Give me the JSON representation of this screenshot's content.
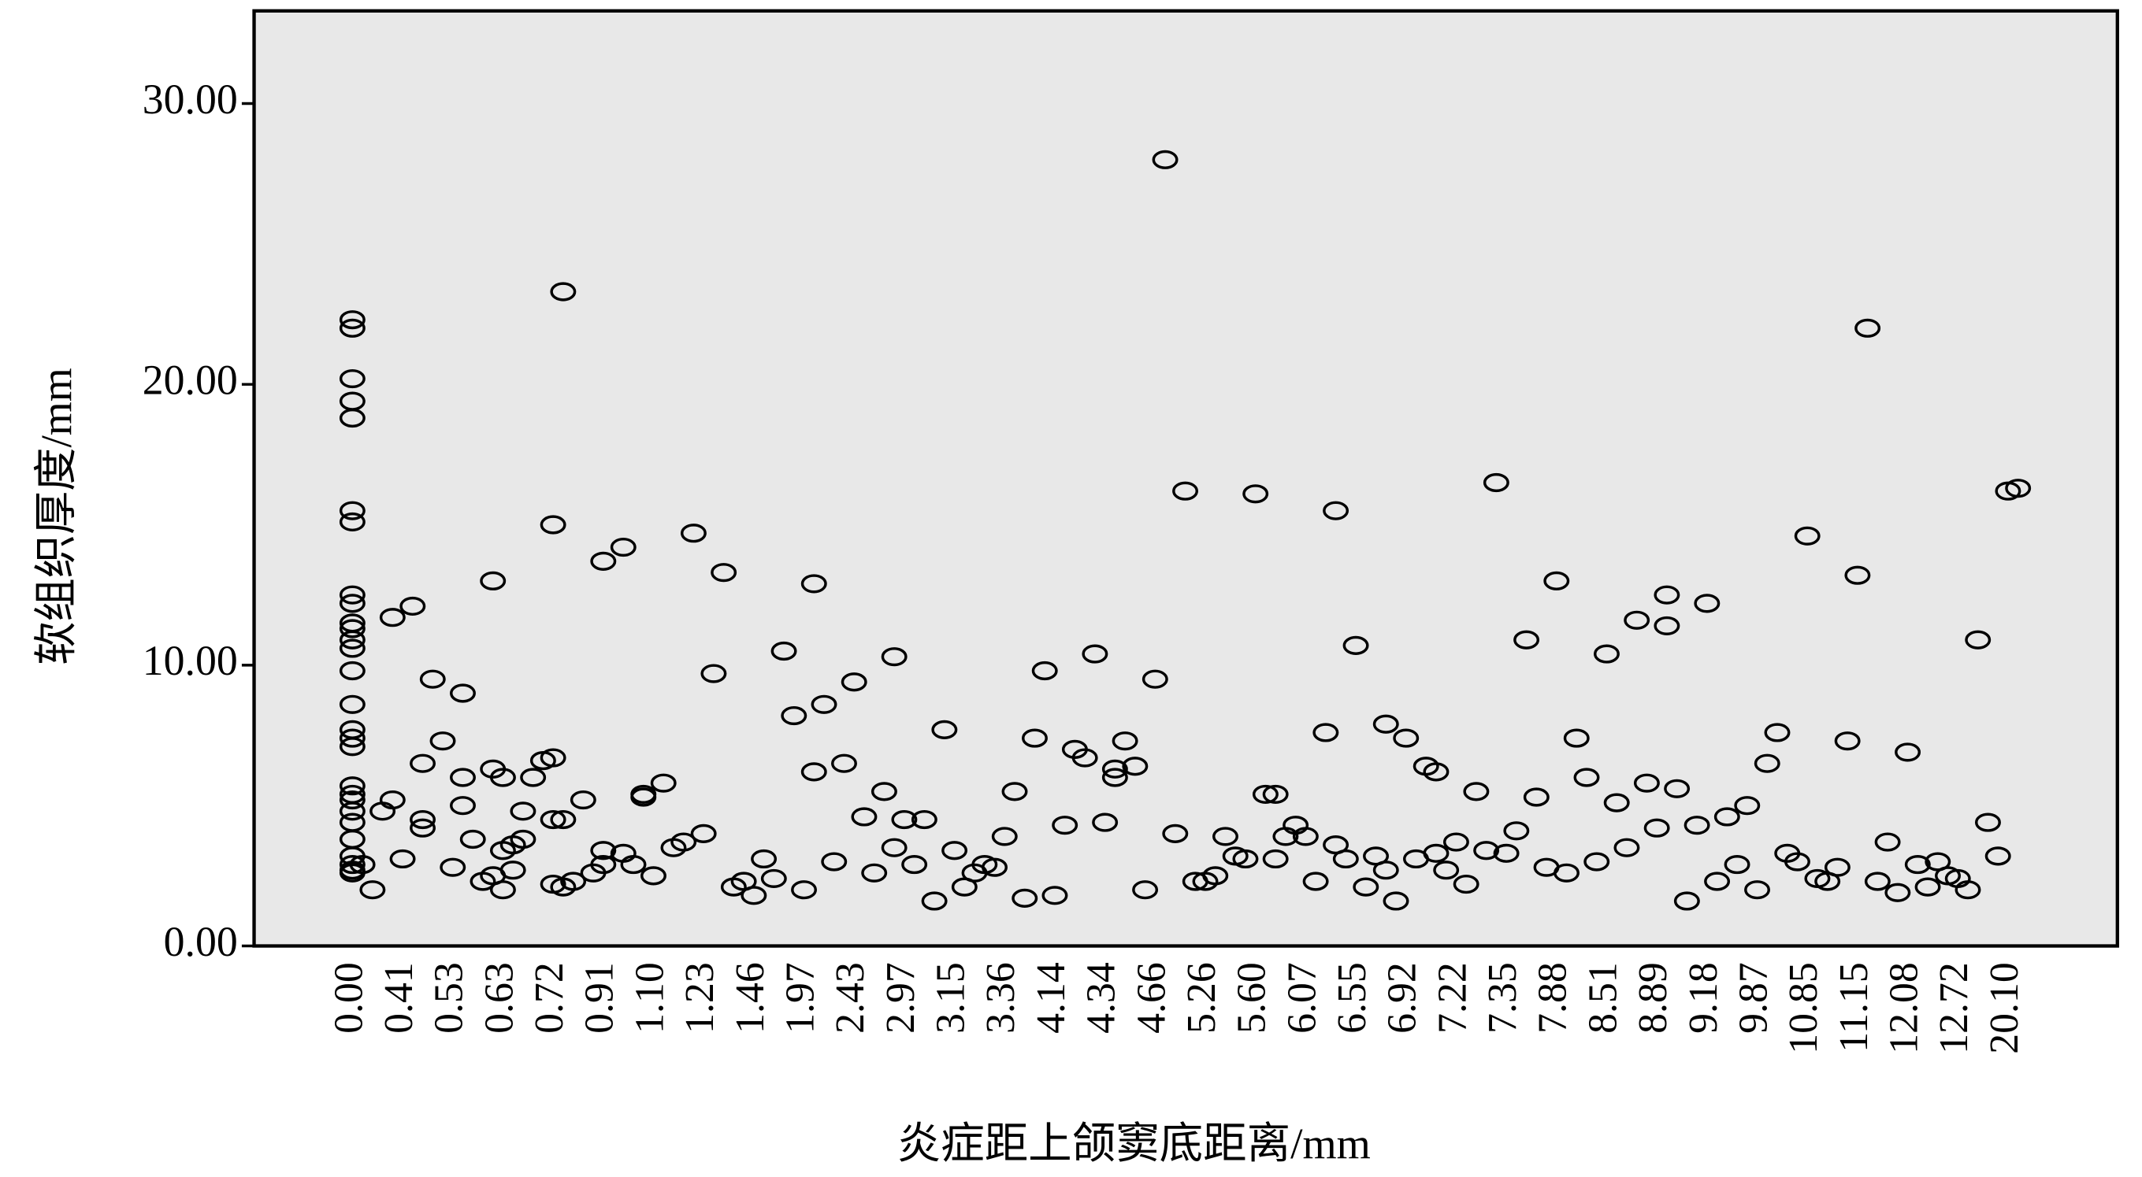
{
  "chart_data": {
    "type": "scatter",
    "x_label": "炎症距上颌窦底距离/mm",
    "y_label": "软组织厚度/mm",
    "categories": [
      "0.00",
      null,
      null,
      null,
      null,
      "0.41",
      null,
      null,
      null,
      null,
      "0.53",
      null,
      null,
      null,
      null,
      "0.63",
      null,
      null,
      null,
      null,
      "0.72",
      null,
      null,
      null,
      null,
      "0.91",
      null,
      null,
      null,
      null,
      "1.10",
      null,
      null,
      null,
      null,
      "1.23",
      null,
      null,
      null,
      null,
      "1.46",
      null,
      null,
      null,
      null,
      "1.97",
      null,
      null,
      null,
      null,
      "2.43",
      null,
      null,
      null,
      null,
      "2.97",
      null,
      null,
      null,
      null,
      "3.15",
      null,
      null,
      null,
      null,
      "3.36",
      null,
      null,
      null,
      null,
      "4.14",
      null,
      null,
      null,
      null,
      "4.34",
      null,
      null,
      null,
      null,
      "4.66",
      null,
      null,
      null,
      null,
      "5.26",
      null,
      null,
      null,
      null,
      "5.60",
      null,
      null,
      null,
      null,
      "6.07",
      null,
      null,
      null,
      null,
      "6.55",
      null,
      null,
      null,
      null,
      "6.92",
      null,
      null,
      null,
      null,
      "7.22",
      null,
      null,
      null,
      null,
      "7.35",
      null,
      null,
      null,
      null,
      "7.88",
      null,
      null,
      null,
      null,
      "8.51",
      null,
      null,
      null,
      null,
      "8.89",
      null,
      null,
      null,
      null,
      "9.18",
      null,
      null,
      null,
      null,
      "9.87",
      null,
      null,
      null,
      null,
      "10.85",
      null,
      null,
      null,
      null,
      "11.15",
      null,
      null,
      null,
      null,
      "12.08",
      null,
      null,
      null,
      null,
      "12.72",
      null,
      null,
      null,
      null,
      "20.10",
      null
    ],
    "values": [
      [
        22.3,
        22.0,
        20.2,
        19.4,
        18.8,
        15.5,
        15.1,
        12.5,
        12.2,
        11.5,
        11.3,
        10.9,
        10.6,
        9.8,
        8.6,
        7.7,
        7.4,
        7.1,
        5.7,
        5.4,
        5.2,
        4.8,
        4.4,
        3.8,
        3.2,
        2.9,
        2.7,
        2.6
      ],
      [
        2.9
      ],
      [
        2.0
      ],
      [
        4.8
      ],
      [
        11.7,
        5.2
      ],
      [
        3.1
      ],
      [
        12.1
      ],
      [
        6.5,
        4.5,
        4.2
      ],
      [
        9.5
      ],
      [
        7.3
      ],
      [
        2.8
      ],
      [
        9.0,
        6.0,
        5.0
      ],
      [
        3.8
      ],
      [
        2.3
      ],
      [
        13.0,
        6.3,
        2.5
      ],
      [
        6.0,
        3.4,
        2.0
      ],
      [
        3.6,
        2.7
      ],
      [
        4.8,
        3.8
      ],
      [
        6.0
      ],
      [
        6.6
      ],
      [
        15.0,
        6.7,
        4.5,
        2.2
      ],
      [
        23.3,
        4.5,
        2.1
      ],
      [
        2.3
      ],
      [
        5.2
      ],
      [
        2.6
      ],
      [
        13.7,
        3.4,
        2.9
      ],
      [],
      [
        14.2,
        3.3
      ],
      [
        2.9
      ],
      [
        5.4,
        5.3
      ],
      [
        2.5
      ],
      [
        5.8
      ],
      [
        3.5
      ],
      [
        3.7
      ],
      [
        14.7
      ],
      [
        4.0
      ],
      [
        9.7
      ],
      [
        13.3
      ],
      [
        2.1
      ],
      [
        2.3
      ],
      [
        1.8
      ],
      [
        3.1
      ],
      [
        2.4
      ],
      [
        10.5
      ],
      [
        8.2
      ],
      [
        2.0
      ],
      [
        12.9,
        6.2
      ],
      [
        8.6
      ],
      [
        3.0
      ],
      [
        6.5
      ],
      [
        9.4
      ],
      [
        4.6
      ],
      [
        2.6
      ],
      [
        5.5
      ],
      [
        10.3,
        3.5
      ],
      [
        4.5
      ],
      [
        2.9
      ],
      [
        4.5
      ],
      [
        1.6
      ],
      [
        7.7
      ],
      [
        3.4
      ],
      [
        2.1
      ],
      [
        2.6
      ],
      [
        2.9
      ],
      [
        2.8
      ],
      [
        3.9
      ],
      [
        5.5
      ],
      [
        1.7
      ],
      [
        7.4
      ],
      [
        9.8
      ],
      [
        1.8
      ],
      [
        4.3
      ],
      [
        7.0
      ],
      [
        6.7
      ],
      [
        10.4
      ],
      [
        4.4
      ],
      [
        6.3,
        6.0
      ],
      [
        7.3
      ],
      [
        6.4
      ],
      [
        2.0
      ],
      [
        9.5
      ],
      [
        28.0
      ],
      [
        4.0
      ],
      [
        16.2
      ],
      [
        2.3
      ],
      [
        2.3
      ],
      [
        2.5
      ],
      [
        3.9
      ],
      [
        3.2
      ],
      [
        3.1
      ],
      [
        16.1
      ],
      [
        5.4
      ],
      [
        5.4,
        3.1
      ],
      [
        3.9
      ],
      [
        4.3
      ],
      [
        3.9
      ],
      [
        2.3
      ],
      [
        7.6
      ],
      [
        15.5,
        3.6
      ],
      [
        3.1
      ],
      [
        10.7
      ],
      [
        2.1
      ],
      [
        3.2
      ],
      [
        7.9,
        2.7
      ],
      [
        1.6
      ],
      [
        7.4
      ],
      [
        3.1
      ],
      [
        6.4
      ],
      [
        6.2,
        3.3
      ],
      [
        2.7
      ],
      [
        3.7
      ],
      [
        2.2
      ],
      [
        5.5
      ],
      [
        3.4
      ],
      [
        16.5
      ],
      [
        3.3
      ],
      [
        4.1
      ],
      [
        10.9
      ],
      [
        5.3
      ],
      [
        2.8
      ],
      [
        13.0
      ],
      [
        2.6
      ],
      [
        7.4
      ],
      [
        6.0
      ],
      [
        3.0
      ],
      [
        10.4
      ],
      [
        5.1
      ],
      [
        3.5
      ],
      [
        11.6
      ],
      [
        5.8
      ],
      [
        4.2
      ],
      [
        12.5,
        11.4
      ],
      [
        5.6
      ],
      [
        1.6
      ],
      [
        4.3
      ],
      [
        12.2
      ],
      [
        2.3
      ],
      [
        4.6
      ],
      [
        2.9
      ],
      [
        5.0
      ],
      [
        2.0
      ],
      [
        6.5
      ],
      [
        7.6
      ],
      [
        3.3
      ],
      [
        3.0
      ],
      [
        14.6
      ],
      [
        2.4
      ],
      [
        2.3
      ],
      [
        2.8
      ],
      [
        7.3
      ],
      [
        13.2
      ],
      [
        22.0
      ],
      [
        2.3
      ],
      [
        3.7
      ],
      [
        1.9
      ],
      [
        6.9
      ],
      [
        2.9
      ],
      [
        2.1
      ],
      [
        3.0
      ],
      [
        2.5
      ],
      [
        2.4
      ],
      [
        2.0
      ],
      [
        10.9
      ],
      [
        4.4
      ],
      [
        3.2
      ],
      [
        16.2
      ],
      [
        16.3
      ]
    ],
    "ylim": [
      0,
      33.3
    ],
    "yticks": [
      {
        "value": 0,
        "label": "0.00"
      },
      {
        "value": 10,
        "label": "10.00"
      },
      {
        "value": 20,
        "label": "20.00"
      },
      {
        "value": 30,
        "label": "30.00"
      }
    ],
    "plot_background": "#e8e8e8",
    "marker_color": "#000000"
  }
}
